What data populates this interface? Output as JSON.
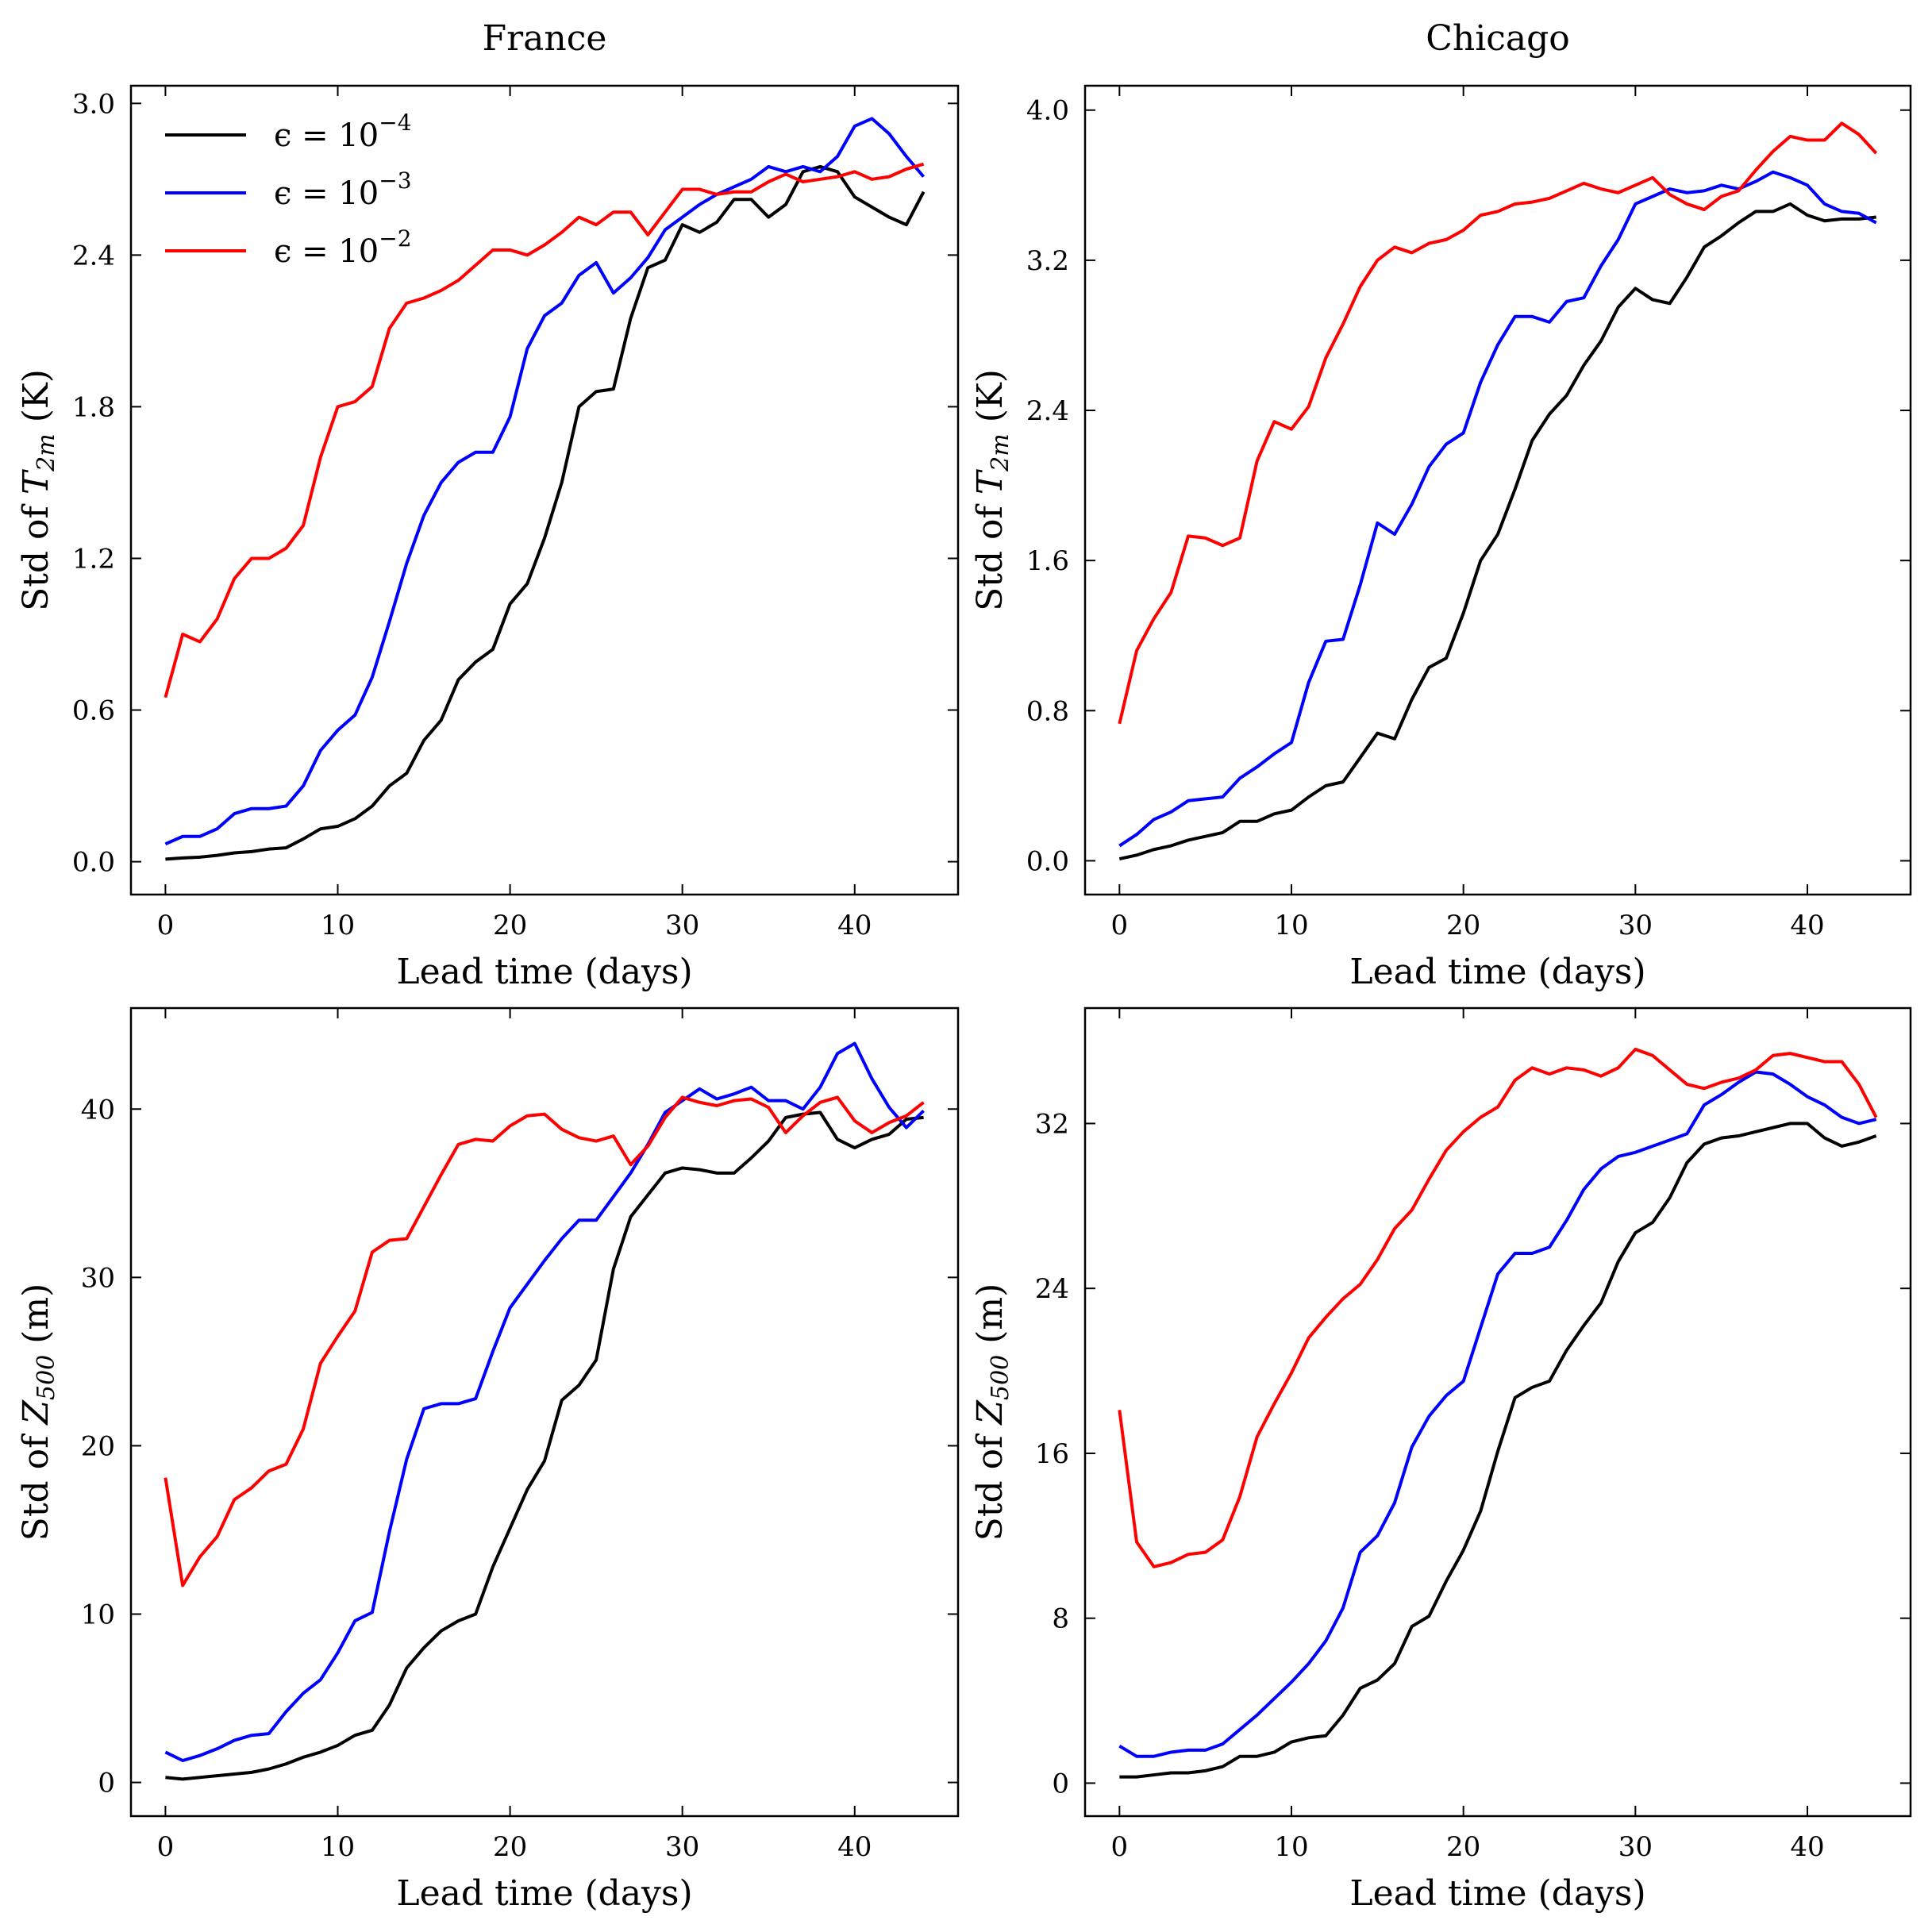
{
  "legend": [
    {
      "name": "ϵ = 10",
      "sup": "−4",
      "color": "#000000"
    },
    {
      "name": "ϵ = 10",
      "sup": "−3",
      "color": "#0000ff"
    },
    {
      "name": "ϵ = 10",
      "sup": "−2",
      "color": "#ff0000"
    }
  ],
  "chart_data": [
    {
      "type": "line",
      "title": "France",
      "xlabel": "Lead time (days)",
      "ylabel": "Std of T",
      "ylabel_sub": "2m",
      "ylabel_unit": " (K)",
      "xlim": [
        -2,
        46
      ],
      "ylim": [
        -0.13,
        3.07
      ],
      "xticks": [
        0,
        10,
        20,
        30,
        40
      ],
      "yticks": [
        0.0,
        0.6,
        1.2,
        1.8,
        2.4,
        3.0
      ],
      "ytick_labels": [
        "0.0",
        "0.6",
        "1.2",
        "1.8",
        "2.4",
        "3.0"
      ],
      "show_legend": true,
      "series": [
        {
          "name": "ϵ = 10^-4",
          "color": "#000000",
          "values": [
            0.01,
            0.015,
            0.018,
            0.025,
            0.035,
            0.04,
            0.05,
            0.055,
            0.09,
            0.13,
            0.14,
            0.17,
            0.22,
            0.3,
            0.35,
            0.48,
            0.56,
            0.72,
            0.79,
            0.84,
            1.02,
            1.1,
            1.28,
            1.5,
            1.8,
            1.86,
            1.87,
            2.15,
            2.35,
            2.38,
            2.52,
            2.49,
            2.53,
            2.62,
            2.62,
            2.55,
            2.6,
            2.73,
            2.75,
            2.73,
            2.63,
            2.59,
            2.55,
            2.52,
            2.65
          ]
        },
        {
          "name": "ϵ = 10^-3",
          "color": "#0000ff",
          "values": [
            0.07,
            0.1,
            0.1,
            0.13,
            0.19,
            0.21,
            0.21,
            0.22,
            0.3,
            0.44,
            0.52,
            0.58,
            0.73,
            0.95,
            1.18,
            1.37,
            1.5,
            1.58,
            1.62,
            1.62,
            1.76,
            2.03,
            2.16,
            2.21,
            2.32,
            2.37,
            2.25,
            2.31,
            2.39,
            2.5,
            2.55,
            2.6,
            2.64,
            2.67,
            2.7,
            2.75,
            2.73,
            2.75,
            2.73,
            2.79,
            2.91,
            2.94,
            2.88,
            2.79,
            2.71
          ]
        },
        {
          "name": "ϵ = 10^-2",
          "color": "#ff0000",
          "values": [
            0.65,
            0.9,
            0.87,
            0.96,
            1.12,
            1.2,
            1.2,
            1.24,
            1.33,
            1.6,
            1.8,
            1.82,
            1.88,
            2.11,
            2.21,
            2.23,
            2.26,
            2.3,
            2.36,
            2.42,
            2.42,
            2.4,
            2.44,
            2.49,
            2.55,
            2.52,
            2.57,
            2.57,
            2.48,
            2.57,
            2.66,
            2.66,
            2.64,
            2.65,
            2.65,
            2.69,
            2.72,
            2.69,
            2.7,
            2.71,
            2.73,
            2.7,
            2.71,
            2.74,
            2.76
          ]
        }
      ]
    },
    {
      "type": "line",
      "title": "Chicago",
      "xlabel": "Lead time (days)",
      "ylabel": "Std of T",
      "ylabel_sub": "2m",
      "ylabel_unit": " (K)",
      "xlim": [
        -2,
        46
      ],
      "ylim": [
        -0.18,
        4.13
      ],
      "xticks": [
        0,
        10,
        20,
        30,
        40
      ],
      "yticks": [
        0.0,
        0.8,
        1.6,
        2.4,
        3.2,
        4.0
      ],
      "ytick_labels": [
        "0.0",
        "0.8",
        "1.6",
        "2.4",
        "3.2",
        "4.0"
      ],
      "show_legend": false,
      "series": [
        {
          "name": "ϵ = 10^-4",
          "color": "#000000",
          "values": [
            0.01,
            0.03,
            0.06,
            0.08,
            0.11,
            0.13,
            0.15,
            0.21,
            0.21,
            0.25,
            0.27,
            0.34,
            0.4,
            0.42,
            0.55,
            0.68,
            0.65,
            0.86,
            1.03,
            1.08,
            1.32,
            1.6,
            1.74,
            1.98,
            2.24,
            2.38,
            2.48,
            2.64,
            2.77,
            2.95,
            3.05,
            2.99,
            2.97,
            3.11,
            3.27,
            3.33,
            3.4,
            3.46,
            3.46,
            3.5,
            3.44,
            3.41,
            3.42,
            3.42,
            3.43
          ]
        },
        {
          "name": "ϵ = 10^-3",
          "color": "#0000ff",
          "values": [
            0.08,
            0.14,
            0.22,
            0.26,
            0.32,
            0.33,
            0.34,
            0.44,
            0.5,
            0.57,
            0.63,
            0.95,
            1.17,
            1.18,
            1.47,
            1.8,
            1.74,
            1.9,
            2.1,
            2.22,
            2.28,
            2.55,
            2.75,
            2.9,
            2.9,
            2.87,
            2.98,
            3.0,
            3.17,
            3.31,
            3.5,
            3.54,
            3.58,
            3.56,
            3.57,
            3.6,
            3.58,
            3.62,
            3.67,
            3.64,
            3.6,
            3.5,
            3.46,
            3.45,
            3.4
          ]
        },
        {
          "name": "ϵ = 10^-2",
          "color": "#ff0000",
          "values": [
            0.73,
            1.12,
            1.29,
            1.43,
            1.73,
            1.72,
            1.68,
            1.72,
            2.13,
            2.34,
            2.3,
            2.42,
            2.68,
            2.86,
            3.06,
            3.2,
            3.27,
            3.24,
            3.29,
            3.31,
            3.36,
            3.44,
            3.46,
            3.5,
            3.51,
            3.53,
            3.57,
            3.61,
            3.58,
            3.56,
            3.6,
            3.64,
            3.55,
            3.5,
            3.47,
            3.54,
            3.57,
            3.68,
            3.78,
            3.86,
            3.84,
            3.84,
            3.93,
            3.87,
            3.77
          ]
        }
      ]
    },
    {
      "type": "line",
      "title": "",
      "xlabel": "Lead time (days)",
      "ylabel": "Std of Z",
      "ylabel_sub": "500",
      "ylabel_unit": " (m)",
      "xlim": [
        -2,
        46
      ],
      "ylim": [
        -2,
        46
      ],
      "xticks": [
        0,
        10,
        20,
        30,
        40
      ],
      "yticks": [
        0,
        10,
        20,
        30,
        40
      ],
      "ytick_labels": [
        "0",
        "10",
        "20",
        "30",
        "40"
      ],
      "show_legend": false,
      "series": [
        {
          "name": "ϵ = 10^-4",
          "color": "#000000",
          "values": [
            0.3,
            0.2,
            0.3,
            0.4,
            0.5,
            0.6,
            0.8,
            1.1,
            1.5,
            1.8,
            2.2,
            2.8,
            3.1,
            4.6,
            6.8,
            8.0,
            9.0,
            9.6,
            10.0,
            12.8,
            15.1,
            17.4,
            19.1,
            22.7,
            23.6,
            25.1,
            30.5,
            33.6,
            34.9,
            36.2,
            36.5,
            36.4,
            36.2,
            36.2,
            37.1,
            38.1,
            39.5,
            39.7,
            39.8,
            38.2,
            37.7,
            38.2,
            38.5,
            39.4,
            39.5
          ]
        },
        {
          "name": "ϵ = 10^-3",
          "color": "#0000ff",
          "values": [
            1.8,
            1.3,
            1.6,
            2.0,
            2.5,
            2.8,
            2.9,
            4.2,
            5.3,
            6.1,
            7.7,
            9.6,
            10.1,
            14.9,
            19.2,
            22.2,
            22.5,
            22.5,
            22.8,
            25.6,
            28.2,
            29.6,
            31.0,
            32.3,
            33.4,
            33.4,
            34.8,
            36.2,
            37.9,
            39.8,
            40.5,
            41.2,
            40.6,
            40.9,
            41.3,
            40.5,
            40.5,
            40.0,
            41.3,
            43.3,
            43.9,
            41.8,
            40.1,
            38.9,
            39.9
          ]
        },
        {
          "name": "ϵ = 10^-2",
          "color": "#ff0000",
          "values": [
            18.1,
            11.7,
            13.4,
            14.6,
            16.8,
            17.5,
            18.5,
            18.9,
            21.0,
            24.9,
            26.5,
            28.0,
            31.5,
            32.2,
            32.3,
            34.2,
            36.1,
            37.9,
            38.2,
            38.1,
            39.0,
            39.6,
            39.7,
            38.8,
            38.3,
            38.1,
            38.4,
            36.7,
            37.8,
            39.5,
            40.7,
            40.4,
            40.2,
            40.5,
            40.6,
            40.1,
            38.6,
            39.6,
            40.4,
            40.7,
            39.3,
            38.6,
            39.2,
            39.6,
            40.4
          ]
        }
      ]
    },
    {
      "type": "line",
      "title": "",
      "xlabel": "Lead time (days)",
      "ylabel": "Std of Z",
      "ylabel_sub": "500",
      "ylabel_unit": " (m)",
      "xlim": [
        -2,
        46
      ],
      "ylim": [
        -1.6,
        37.6
      ],
      "xticks": [
        0,
        10,
        20,
        30,
        40
      ],
      "yticks": [
        0,
        8,
        16,
        24,
        32
      ],
      "ytick_labels": [
        "0",
        "8",
        "16",
        "24",
        "32"
      ],
      "show_legend": false,
      "series": [
        {
          "name": "ϵ = 10^-4",
          "color": "#000000",
          "values": [
            0.3,
            0.3,
            0.4,
            0.5,
            0.5,
            0.6,
            0.8,
            1.3,
            1.3,
            1.5,
            2.0,
            2.2,
            2.3,
            3.3,
            4.6,
            5.0,
            5.8,
            7.6,
            8.1,
            9.8,
            11.3,
            13.2,
            16.1,
            18.7,
            19.2,
            19.5,
            21.0,
            22.2,
            23.3,
            25.3,
            26.7,
            27.2,
            28.4,
            30.1,
            31.0,
            31.3,
            31.4,
            31.6,
            31.8,
            32.0,
            32.0,
            31.3,
            30.9,
            31.1,
            31.4
          ]
        },
        {
          "name": "ϵ = 10^-3",
          "color": "#0000ff",
          "values": [
            1.8,
            1.3,
            1.3,
            1.5,
            1.6,
            1.6,
            1.9,
            2.6,
            3.3,
            4.1,
            4.9,
            5.8,
            6.9,
            8.5,
            11.2,
            12.0,
            13.6,
            16.3,
            17.8,
            18.8,
            19.5,
            22.1,
            24.7,
            25.7,
            25.7,
            26.0,
            27.3,
            28.8,
            29.8,
            30.4,
            30.6,
            30.9,
            31.2,
            31.5,
            32.9,
            33.4,
            34.0,
            34.5,
            34.4,
            33.9,
            33.3,
            32.9,
            32.3,
            32.0,
            32.2
          ]
        },
        {
          "name": "ϵ = 10^-2",
          "color": "#ff0000",
          "values": [
            18.1,
            11.7,
            10.5,
            10.7,
            11.1,
            11.2,
            11.8,
            13.9,
            16.8,
            18.4,
            19.9,
            21.6,
            22.6,
            23.5,
            24.2,
            25.4,
            26.9,
            27.8,
            29.3,
            30.7,
            31.6,
            32.3,
            32.8,
            34.1,
            34.7,
            34.4,
            34.7,
            34.6,
            34.3,
            34.7,
            35.6,
            35.3,
            34.6,
            33.9,
            33.7,
            34.0,
            34.2,
            34.6,
            35.3,
            35.4,
            35.2,
            35.0,
            35.0,
            33.9,
            32.3
          ]
        }
      ]
    }
  ]
}
